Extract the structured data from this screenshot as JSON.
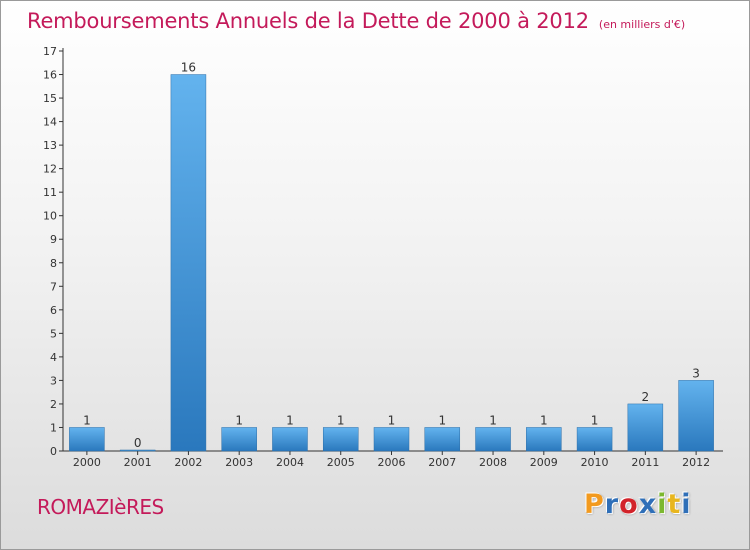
{
  "header": {
    "title": "Remboursements Annuels de la Dette de 2000 à 2012",
    "subtitle": "(en milliers d'€)"
  },
  "footer": {
    "commune": "ROMAZIèRES",
    "logo_text": "Proxiti",
    "logo_colors": [
      "#f29a1f",
      "#2f6fb8",
      "#d2232a",
      "#2f6fb8",
      "#7cb82f",
      "#e8b61e",
      "#2f6fb8"
    ]
  },
  "chart_data": {
    "type": "bar",
    "categories": [
      "2000",
      "2001",
      "2002",
      "2003",
      "2004",
      "2005",
      "2006",
      "2007",
      "2008",
      "2009",
      "2010",
      "2011",
      "2012"
    ],
    "values": [
      1,
      0,
      16,
      1,
      1,
      1,
      1,
      1,
      1,
      1,
      1,
      2,
      3
    ],
    "data_labels": [
      "1",
      "0",
      "16",
      "1",
      "1",
      "1",
      "1",
      "1",
      "1",
      "1",
      "1",
      "2",
      "3"
    ],
    "ylim": [
      0,
      17
    ],
    "yticks": [
      "0",
      "1",
      "2",
      "3",
      "4",
      "5",
      "6",
      "7",
      "8",
      "9",
      "10",
      "11",
      "12",
      "13",
      "14",
      "15",
      "16",
      "17"
    ],
    "grid": false,
    "bar_color": "#3d8fd6"
  }
}
